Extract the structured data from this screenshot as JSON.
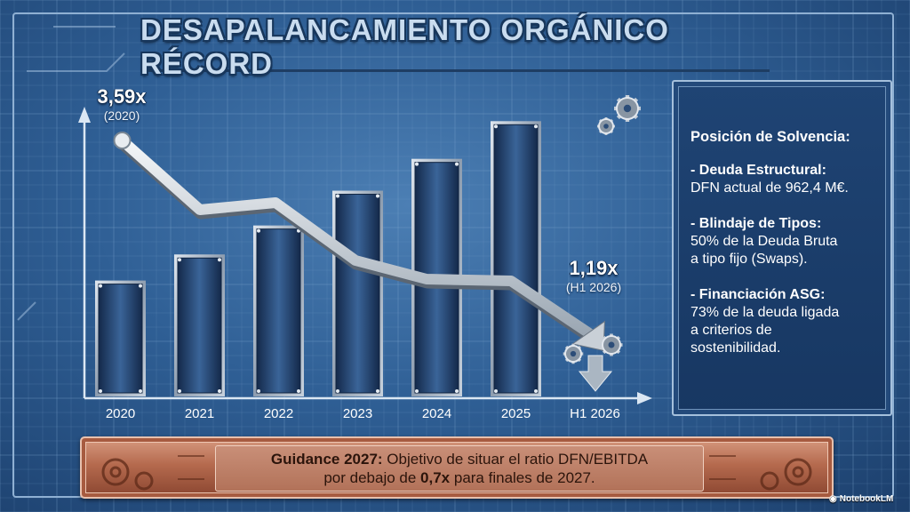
{
  "title": "DESAPALANCAMIENTO ORGÁNICO RÉCORD",
  "start_annotation": {
    "value": "3,59x",
    "sub": "(2020)"
  },
  "end_annotation": {
    "value": "1,19x",
    "sub": "(H1 2026)"
  },
  "chart_data": {
    "type": "bar",
    "categories": [
      "2020",
      "2021",
      "2022",
      "2023",
      "2024",
      "2025",
      "H1 2026"
    ],
    "bar_relative_heights": [
      0.4,
      0.49,
      0.59,
      0.71,
      0.82,
      0.95,
      null
    ],
    "line_values": [
      3.59,
      null,
      null,
      null,
      null,
      null,
      1.19
    ],
    "line_labels": [
      "3,59x",
      "1,19x"
    ],
    "bar_style": "dark navy metallic panels with riveted steel frame",
    "line_style": "silver 3D arrow descending",
    "grid": true
  },
  "panel": {
    "heading": "Posición de Solvencia:",
    "items": [
      {
        "title": "- Deuda Estructural:",
        "lines": [
          "DFN actual de 962,4 M€."
        ]
      },
      {
        "title": "- Blindaje de Tipos:",
        "lines": [
          "50% de la Deuda Bruta",
          "a tipo fijo (Swaps)."
        ]
      },
      {
        "title": "- Financiación ASG:",
        "lines": [
          "73% de la deuda ligada",
          "a criterios de",
          "sostenibilidad."
        ]
      }
    ]
  },
  "guidance": {
    "bold1": "Guidance 2027:",
    "text1": " Objetivo de situar el ratio DFN/EBITDA",
    "text2a": "por debajo de ",
    "bold2": "0,7x",
    "text2b": " para finales de 2027."
  },
  "branding": "NotebookLM",
  "colors": {
    "background": "#2f5f95",
    "bar": "#1d3a63",
    "arrow": "#d7dde3",
    "panel": "#1f4474",
    "guidance": "#b56a4e"
  },
  "icons": [
    "gear-icon",
    "down-arrow-icon",
    "circuit-decoration"
  ]
}
